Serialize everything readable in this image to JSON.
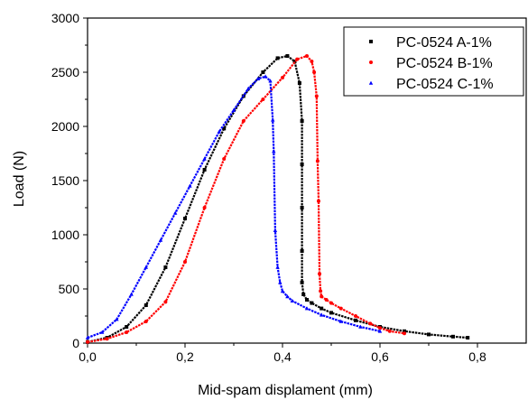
{
  "chart_data": {
    "type": "scatter",
    "title": "",
    "xlabel": "Mid-spam displament (mm)",
    "ylabel": "Load (N)",
    "xlim": [
      0.0,
      0.9
    ],
    "ylim": [
      0,
      3000
    ],
    "xticks": [
      0.0,
      0.2,
      0.4,
      0.6,
      0.8
    ],
    "xtick_labels": [
      "0,0",
      "0,2",
      "0,4",
      "0,6",
      "0,8"
    ],
    "yticks": [
      0,
      500,
      1000,
      1500,
      2000,
      2500,
      3000
    ],
    "ytick_labels": [
      "0",
      "500",
      "1000",
      "1500",
      "2000",
      "2500",
      "3000"
    ],
    "grid": false,
    "legend_position": "top-right",
    "series": [
      {
        "name": "PC-0524 A-1%",
        "color": "#000000",
        "marker": "square",
        "x": [
          0.0,
          0.04,
          0.08,
          0.12,
          0.16,
          0.2,
          0.24,
          0.28,
          0.32,
          0.36,
          0.39,
          0.41,
          0.425,
          0.435,
          0.44,
          0.44,
          0.44,
          0.44,
          0.44,
          0.443,
          0.45,
          0.46,
          0.48,
          0.5,
          0.55,
          0.6,
          0.65,
          0.7,
          0.75,
          0.78
        ],
        "y": [
          10,
          50,
          150,
          350,
          700,
          1150,
          1600,
          1980,
          2280,
          2500,
          2630,
          2650,
          2600,
          2400,
          2050,
          1650,
          1250,
          850,
          560,
          450,
          400,
          370,
          320,
          280,
          210,
          150,
          110,
          80,
          60,
          50
        ]
      },
      {
        "name": "PC-0524 B-1%",
        "color": "#ff0000",
        "marker": "circle",
        "x": [
          0.0,
          0.04,
          0.08,
          0.12,
          0.16,
          0.2,
          0.24,
          0.28,
          0.32,
          0.36,
          0.4,
          0.43,
          0.45,
          0.46,
          0.465,
          0.47,
          0.472,
          0.474,
          0.476,
          0.478,
          0.48,
          0.49,
          0.5,
          0.52,
          0.55,
          0.58,
          0.6,
          0.62,
          0.65
        ],
        "y": [
          10,
          40,
          100,
          200,
          380,
          750,
          1250,
          1700,
          2050,
          2250,
          2450,
          2620,
          2650,
          2600,
          2500,
          2280,
          1680,
          1310,
          640,
          480,
          430,
          400,
          370,
          320,
          250,
          180,
          140,
          110,
          90
        ]
      },
      {
        "name": "PC-0524 C-1%",
        "color": "#0000ff",
        "marker": "triangle",
        "x": [
          0.0,
          0.03,
          0.06,
          0.09,
          0.12,
          0.15,
          0.18,
          0.21,
          0.24,
          0.27,
          0.3,
          0.33,
          0.35,
          0.365,
          0.375,
          0.38,
          0.382,
          0.385,
          0.39,
          0.395,
          0.4,
          0.41,
          0.42,
          0.45,
          0.48,
          0.52,
          0.56,
          0.6
        ],
        "y": [
          50,
          100,
          220,
          450,
          700,
          950,
          1200,
          1450,
          1700,
          1950,
          2150,
          2350,
          2440,
          2460,
          2420,
          2060,
          1770,
          1040,
          700,
          560,
          480,
          430,
          390,
          320,
          260,
          200,
          150,
          110
        ]
      }
    ]
  }
}
